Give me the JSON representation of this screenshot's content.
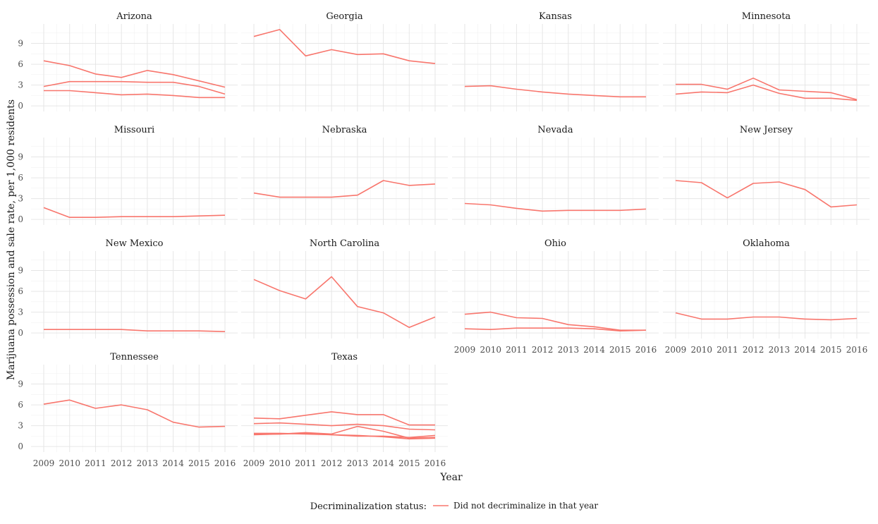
{
  "chart_data": {
    "type": "line",
    "xlabel": "Year",
    "ylabel": "Marijuana possession and sale rate, per 1,000 residents",
    "x": [
      2009,
      2010,
      2011,
      2012,
      2013,
      2014,
      2015,
      2016
    ],
    "ylim": [
      -0.8,
      11.8
    ],
    "y_ticks": [
      0,
      3,
      6,
      9
    ],
    "grid": true,
    "legend": {
      "position": "bottom",
      "title": "Decriminalization status:",
      "entries": [
        {
          "label": "Did not decriminalize in that year",
          "color": "#F8766D"
        }
      ]
    },
    "line_color": "#F8766D",
    "panels": [
      {
        "title": "Arizona",
        "series": [
          [
            6.5,
            5.8,
            4.6,
            4.1,
            5.1,
            4.5,
            3.6,
            2.7
          ],
          [
            2.8,
            3.5,
            3.5,
            3.5,
            3.4,
            3.4,
            2.8,
            1.7
          ],
          [
            2.2,
            2.2,
            1.9,
            1.6,
            1.7,
            1.5,
            1.2,
            1.2
          ]
        ]
      },
      {
        "title": "Georgia",
        "series": [
          [
            10.0,
            11.0,
            7.2,
            8.1,
            7.4,
            7.5,
            6.5,
            6.1
          ]
        ]
      },
      {
        "title": "Kansas",
        "series": [
          [
            2.8,
            2.9,
            2.4,
            2.0,
            1.7,
            1.5,
            1.3,
            1.3
          ]
        ]
      },
      {
        "title": "Minnesota",
        "series": [
          [
            3.1,
            3.1,
            2.4,
            4.0,
            2.3,
            2.1,
            1.9,
            0.9
          ],
          [
            1.7,
            2.0,
            1.9,
            3.0,
            1.8,
            1.1,
            1.1,
            0.8
          ]
        ]
      },
      {
        "title": "Missouri",
        "series": [
          [
            1.7,
            0.3,
            0.3,
            0.4,
            0.4,
            0.4,
            0.5,
            0.6
          ]
        ]
      },
      {
        "title": "Nebraska",
        "series": [
          [
            3.8,
            3.2,
            3.2,
            3.2,
            3.5,
            5.6,
            4.9,
            5.1
          ]
        ]
      },
      {
        "title": "Nevada",
        "series": [
          [
            2.3,
            2.1,
            1.6,
            1.2,
            1.3,
            1.3,
            1.3,
            1.5
          ]
        ]
      },
      {
        "title": "New Jersey",
        "series": [
          [
            5.6,
            5.3,
            3.1,
            5.2,
            5.4,
            4.3,
            1.8,
            2.1
          ]
        ]
      },
      {
        "title": "New Mexico",
        "series": [
          [
            0.5,
            0.5,
            0.5,
            0.5,
            0.3,
            0.3,
            0.3,
            0.2
          ]
        ]
      },
      {
        "title": "North Carolina",
        "series": [
          [
            7.7,
            6.1,
            4.9,
            8.1,
            3.8,
            2.9,
            0.8,
            2.3
          ]
        ]
      },
      {
        "title": "Ohio",
        "series": [
          [
            2.7,
            3.0,
            2.2,
            2.1,
            1.2,
            0.9,
            0.4,
            0.4
          ],
          [
            0.6,
            0.5,
            0.7,
            0.7,
            0.7,
            0.6,
            0.3,
            0.4
          ]
        ]
      },
      {
        "title": "Oklahoma",
        "series": [
          [
            2.9,
            2.0,
            2.0,
            2.3,
            2.3,
            2.0,
            1.9,
            2.1
          ]
        ]
      },
      {
        "title": "Tennessee",
        "series": [
          [
            6.1,
            6.7,
            5.5,
            6.0,
            5.3,
            3.5,
            2.8,
            2.9
          ]
        ]
      },
      {
        "title": "Texas",
        "series": [
          [
            4.1,
            4.0,
            4.5,
            5.0,
            4.6,
            4.6,
            3.1,
            3.1
          ],
          [
            3.3,
            3.4,
            3.2,
            3.0,
            3.2,
            3.0,
            2.5,
            2.4
          ],
          [
            1.9,
            1.9,
            1.8,
            1.7,
            1.5,
            1.5,
            1.3,
            1.6
          ],
          [
            1.7,
            1.8,
            2.0,
            1.8,
            2.9,
            2.2,
            1.2,
            1.3
          ],
          [
            1.8,
            1.8,
            1.9,
            1.7,
            1.6,
            1.4,
            1.1,
            1.2
          ]
        ]
      }
    ]
  }
}
